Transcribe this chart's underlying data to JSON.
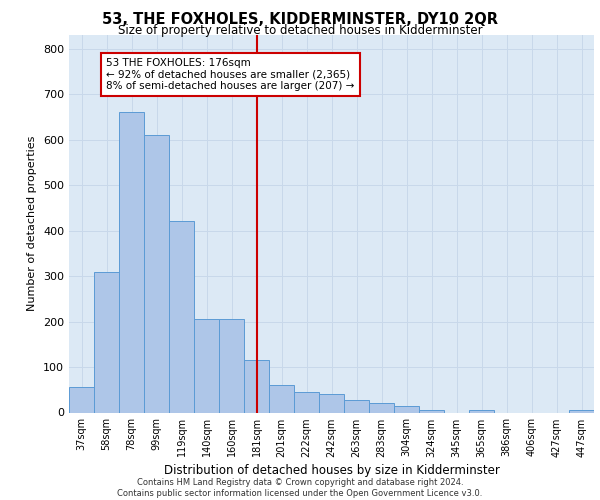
{
  "title": "53, THE FOXHOLES, KIDDERMINSTER, DY10 2QR",
  "subtitle": "Size of property relative to detached houses in Kidderminster",
  "xlabel": "Distribution of detached houses by size in Kidderminster",
  "ylabel": "Number of detached properties",
  "categories": [
    "37sqm",
    "58sqm",
    "78sqm",
    "99sqm",
    "119sqm",
    "140sqm",
    "160sqm",
    "181sqm",
    "201sqm",
    "222sqm",
    "242sqm",
    "263sqm",
    "283sqm",
    "304sqm",
    "324sqm",
    "345sqm",
    "365sqm",
    "386sqm",
    "406sqm",
    "427sqm",
    "447sqm"
  ],
  "values": [
    55,
    310,
    660,
    610,
    420,
    205,
    205,
    115,
    60,
    45,
    40,
    27,
    20,
    15,
    5,
    0,
    5,
    0,
    0,
    0,
    5
  ],
  "bar_color": "#aec6e8",
  "bar_edge_color": "#5b9bd5",
  "vline_label": "181sqm",
  "vline_color": "#cc0000",
  "annotation_text": "53 THE FOXHOLES: 176sqm\n← 92% of detached houses are smaller (2,365)\n8% of semi-detached houses are larger (207) →",
  "annotation_box_color": "#ffffff",
  "annotation_box_edge": "#cc0000",
  "ylim": [
    0,
    830
  ],
  "yticks": [
    0,
    100,
    200,
    300,
    400,
    500,
    600,
    700,
    800
  ],
  "grid_color": "#c8d8ea",
  "background_color": "#dce9f5",
  "footer": "Contains HM Land Registry data © Crown copyright and database right 2024.\nContains public sector information licensed under the Open Government Licence v3.0."
}
